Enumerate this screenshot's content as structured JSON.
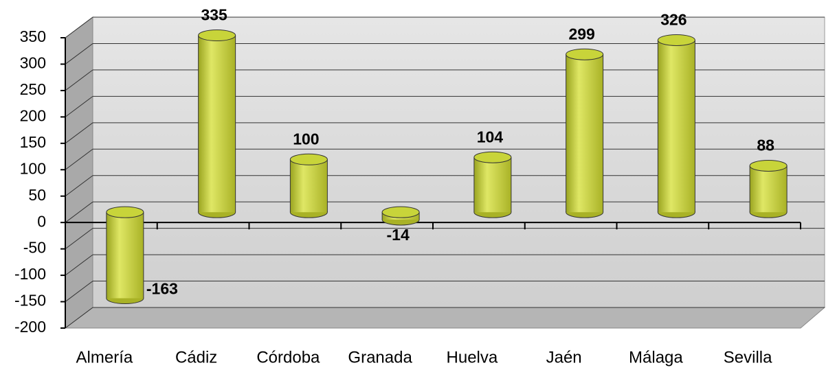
{
  "chart_data": {
    "type": "bar",
    "categories": [
      "Almería",
      "Cádiz",
      "Córdoba",
      "Granada",
      "Huelva",
      "Jaén",
      "Málaga",
      "Sevilla"
    ],
    "values": [
      -163,
      335,
      100,
      -14,
      104,
      299,
      326,
      88
    ],
    "color": "#c8d43a",
    "ylim": [
      -200,
      350
    ],
    "yticks": [
      -200,
      -150,
      -100,
      -50,
      0,
      50,
      100,
      150,
      200,
      250,
      300,
      350
    ],
    "grid": true
  }
}
